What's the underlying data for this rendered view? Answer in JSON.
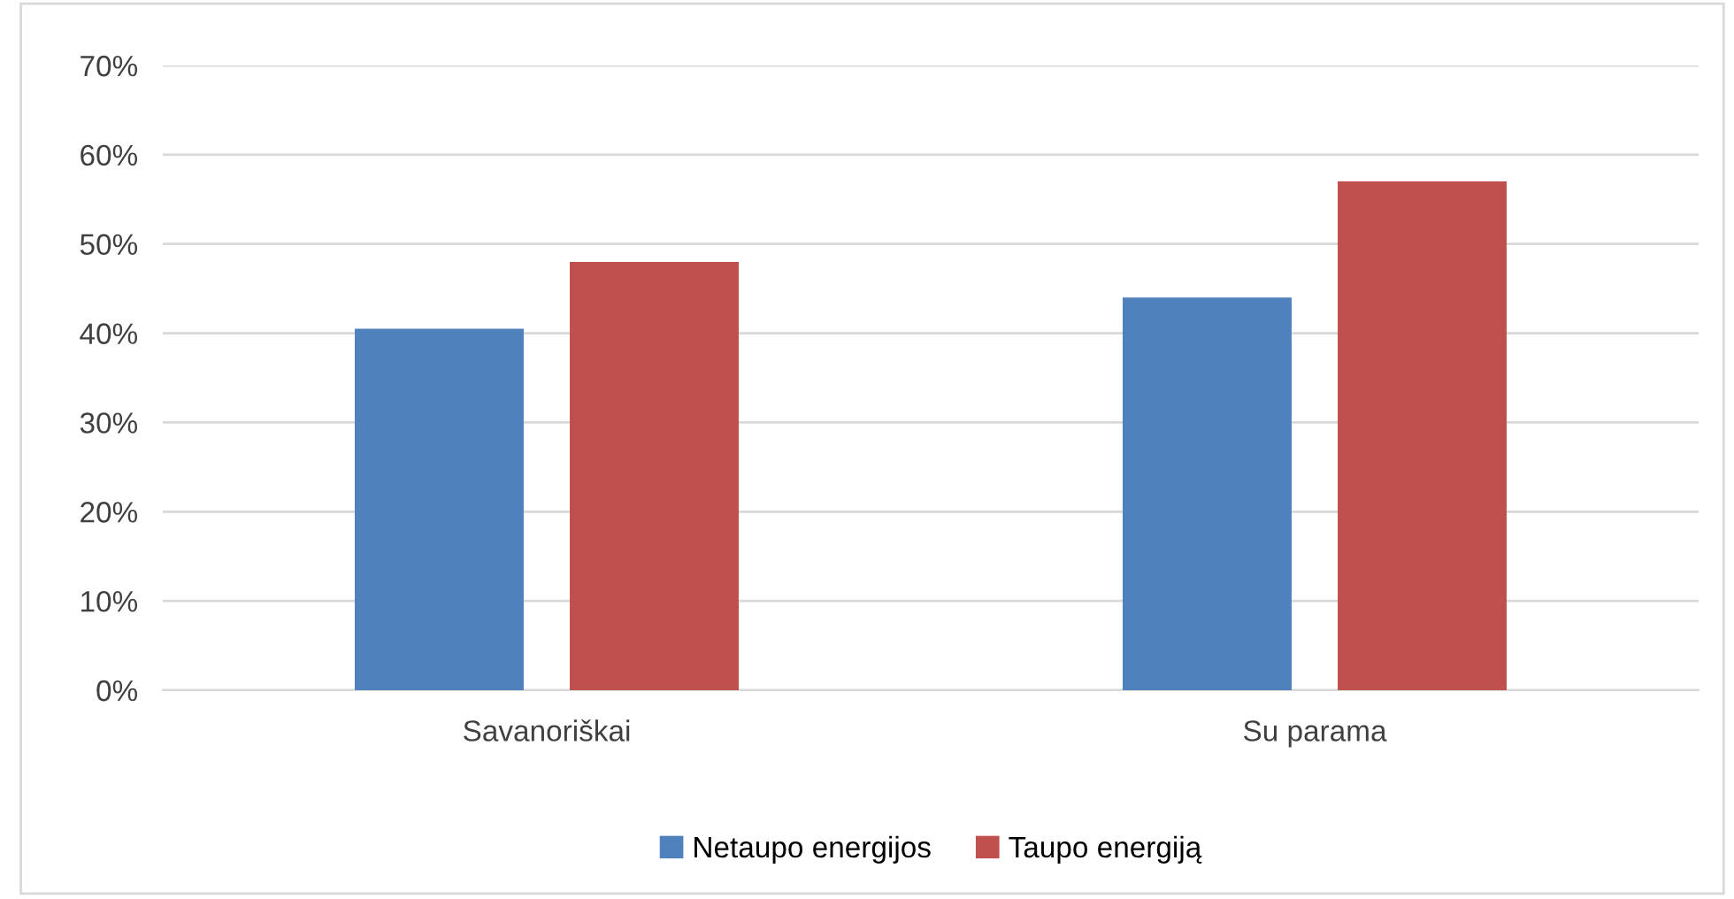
{
  "chart_data": {
    "type": "bar",
    "categories": [
      "Savanoriškai",
      "Su parama"
    ],
    "series": [
      {
        "name": "Netaupo energijos",
        "color": "#4f81bd",
        "values": [
          40.5,
          44.0
        ]
      },
      {
        "name": "Taupo energiją",
        "color": "#c0504d",
        "values": [
          48.0,
          57.0
        ]
      }
    ],
    "ylim": [
      0,
      70
    ],
    "yticks": [
      {
        "value": 0,
        "label": "0%"
      },
      {
        "value": 10,
        "label": "10%"
      },
      {
        "value": 20,
        "label": "20%"
      },
      {
        "value": 30,
        "label": "30%"
      },
      {
        "value": 40,
        "label": "40%"
      },
      {
        "value": 50,
        "label": "50%"
      },
      {
        "value": 60,
        "label": "60%"
      },
      {
        "value": 70,
        "label": "70%"
      }
    ],
    "grid": "y",
    "legend": "bottom"
  }
}
